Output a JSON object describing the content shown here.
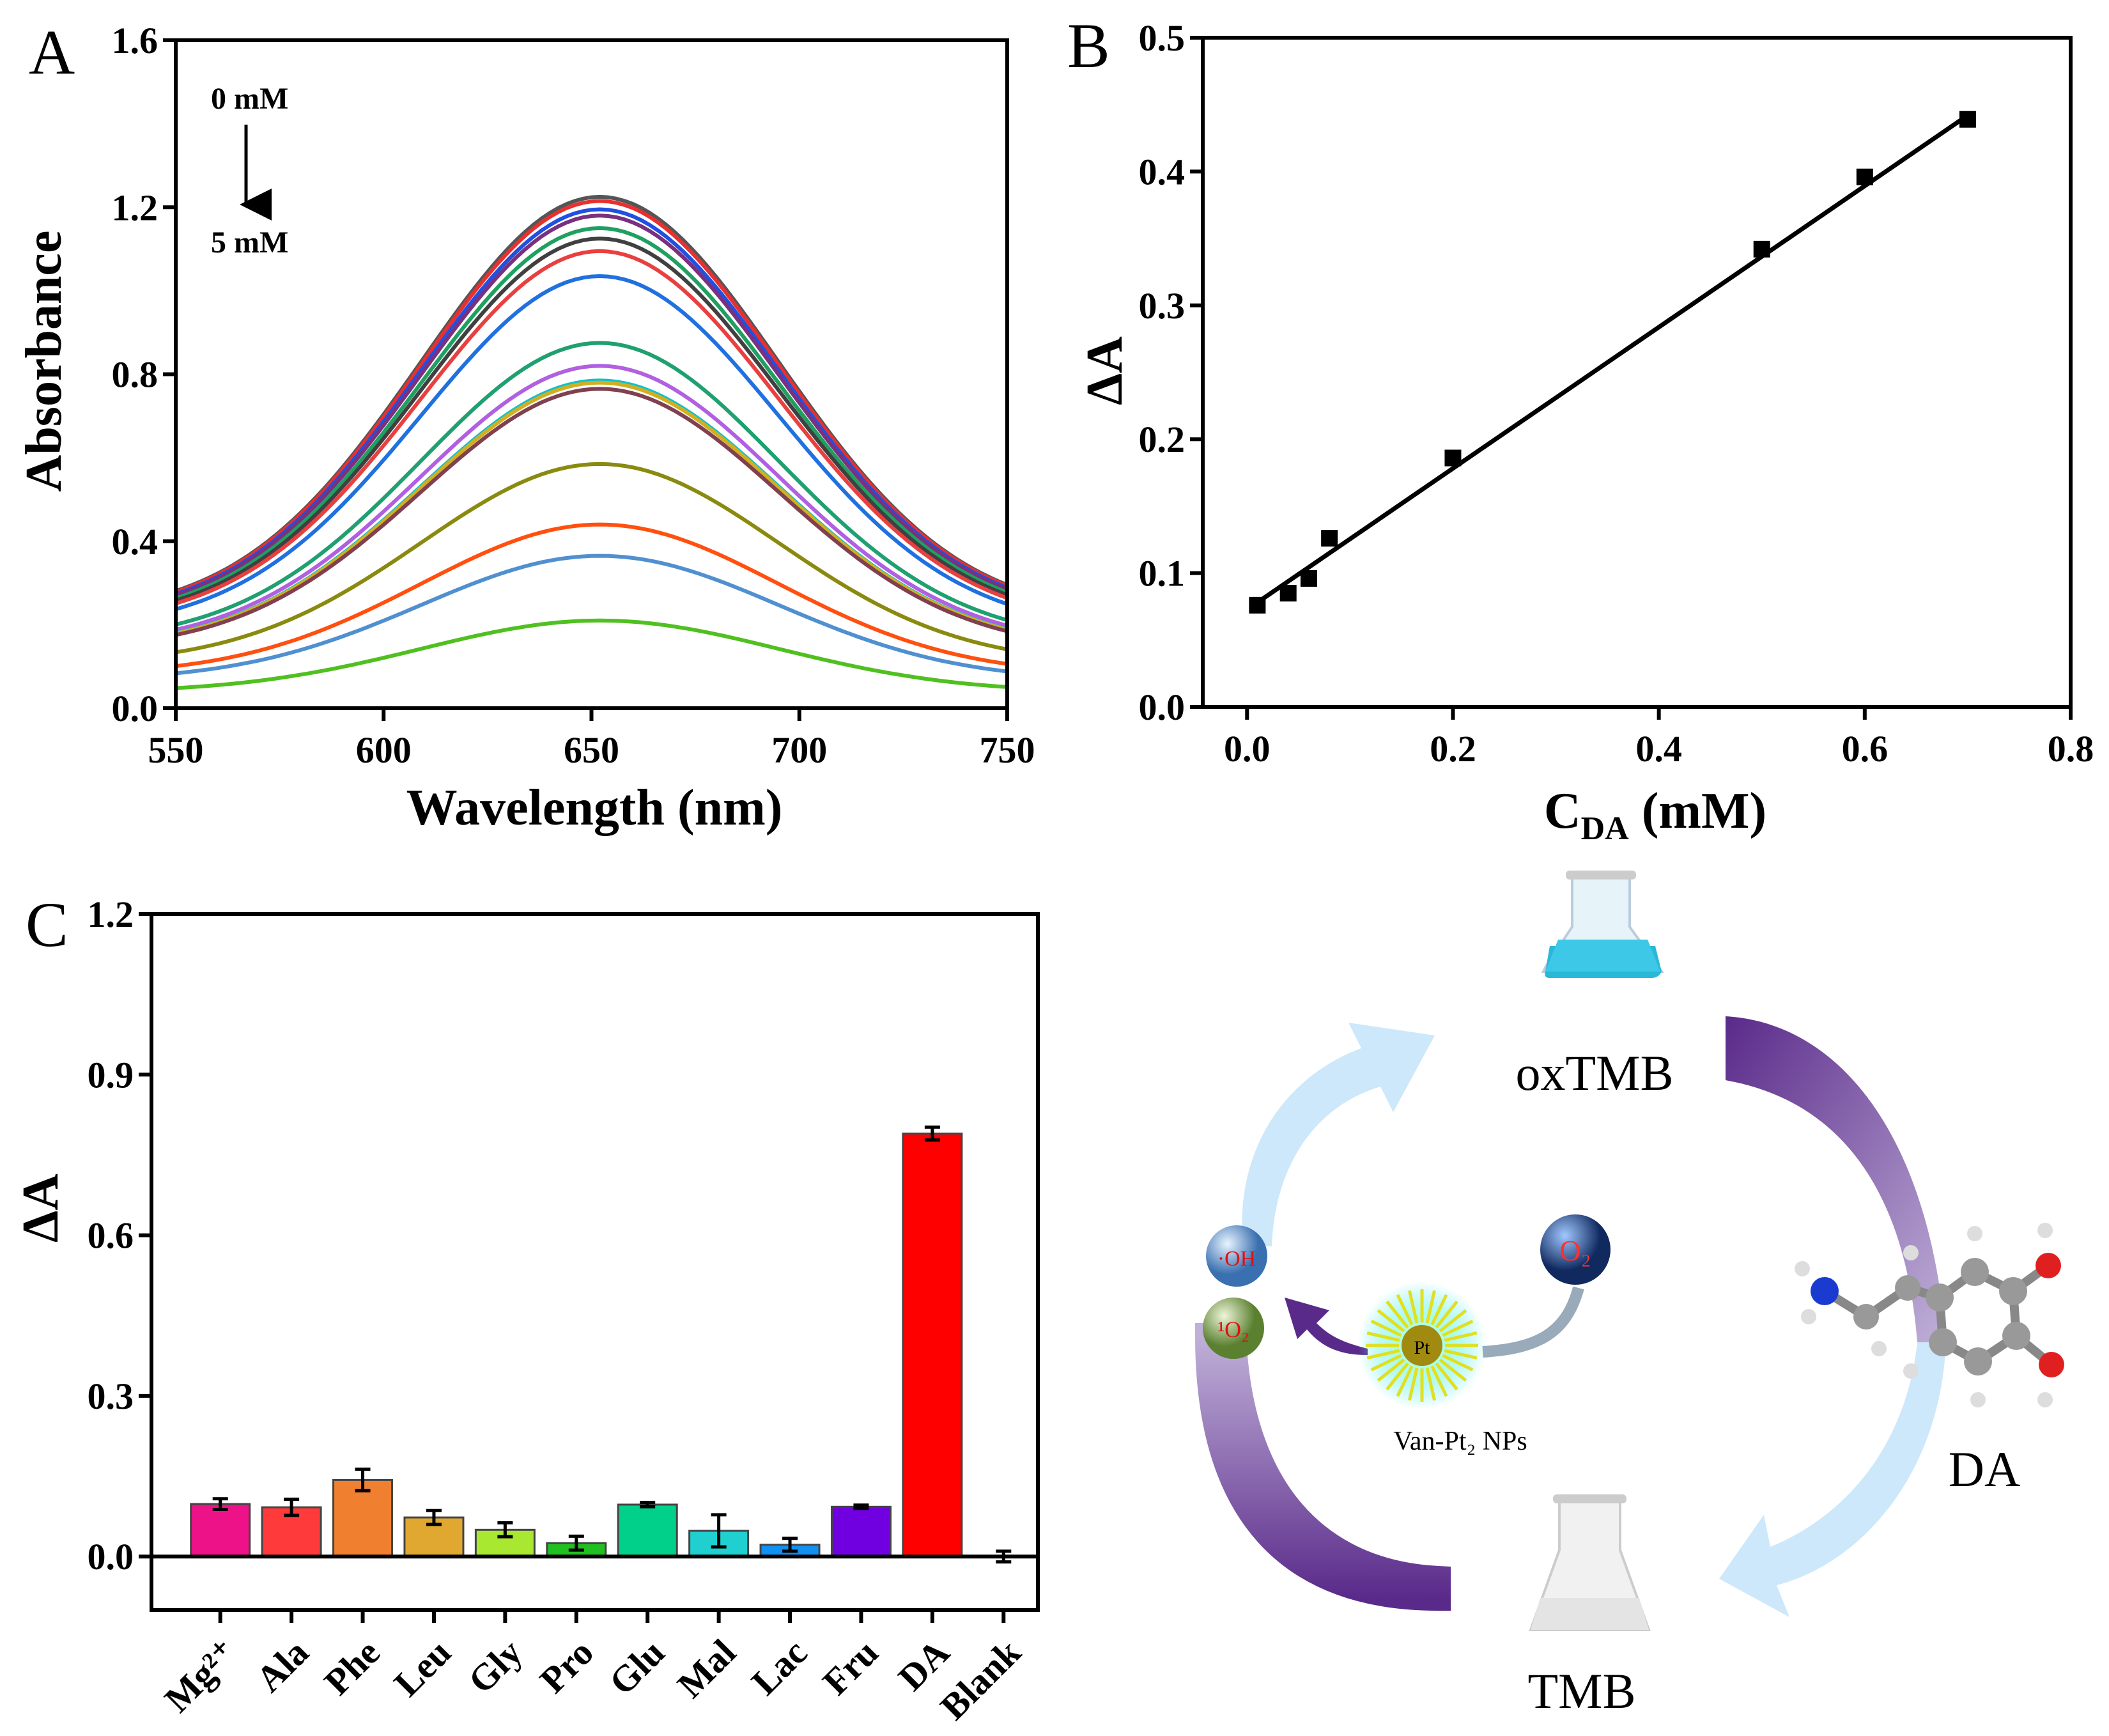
{
  "panel_labels": {
    "a": "A",
    "b": "B",
    "c": "C"
  },
  "chart_data": [
    {
      "type": "line",
      "panel": "A",
      "xlabel": "Wavelength (nm)",
      "ylabel": "Absorbance",
      "xlim": [
        550,
        750
      ],
      "ylim": [
        0,
        1.6
      ],
      "xticks": [
        "550",
        "600",
        "650",
        "700",
        "750"
      ],
      "yticks": [
        "0.0",
        "0.4",
        "0.8",
        "1.2",
        "1.6"
      ],
      "annotation_top": "0 mM",
      "annotation_bottom": "5 mM",
      "peak_wavelength": 652,
      "series": [
        {
          "name": "s1",
          "peak": 1.225,
          "color": "#555555"
        },
        {
          "name": "s2",
          "peak": 1.215,
          "color": "#e83030"
        },
        {
          "name": "s3",
          "peak": 1.195,
          "color": "#2050e0"
        },
        {
          "name": "s4",
          "peak": 1.18,
          "color": "#7a3080"
        },
        {
          "name": "s5",
          "peak": 1.15,
          "color": "#20a060"
        },
        {
          "name": "s6",
          "peak": 1.125,
          "color": "#404040"
        },
        {
          "name": "s7",
          "peak": 1.095,
          "color": "#e84040"
        },
        {
          "name": "s8",
          "peak": 1.035,
          "color": "#2070e0"
        },
        {
          "name": "s9",
          "peak": 0.875,
          "color": "#20a070"
        },
        {
          "name": "s10",
          "peak": 0.82,
          "color": "#b060e0"
        },
        {
          "name": "s11",
          "peak": 0.785,
          "color": "#10c0d0"
        },
        {
          "name": "s12",
          "peak": 0.78,
          "color": "#d0b020"
        },
        {
          "name": "s13",
          "peak": 0.765,
          "color": "#804050"
        },
        {
          "name": "s14",
          "peak": 0.585,
          "color": "#8a8a10"
        },
        {
          "name": "s15",
          "peak": 0.44,
          "color": "#ff5010"
        },
        {
          "name": "s16",
          "peak": 0.365,
          "color": "#5090d0"
        },
        {
          "name": "s17",
          "peak": 0.21,
          "color": "#50c020"
        }
      ]
    },
    {
      "type": "scatter",
      "panel": "B",
      "xlabel": "C",
      "xlabel_sub": "DA",
      "xlabel_unit": " (mM)",
      "ylabel": "ΔA",
      "xlim": [
        -0.043,
        0.8
      ],
      "ylim": [
        0,
        0.5
      ],
      "xticks": [
        "0.0",
        "0.2",
        "0.4",
        "0.6",
        "0.8"
      ],
      "yticks": [
        "0.0",
        "0.1",
        "0.2",
        "0.3",
        "0.4",
        "0.5"
      ],
      "x": [
        0.01,
        0.04,
        0.06,
        0.08,
        0.2,
        0.5,
        0.6,
        0.7
      ],
      "y": [
        0.076,
        0.085,
        0.096,
        0.126,
        0.186,
        0.342,
        0.396,
        0.439
      ],
      "fit": {
        "x": [
          0.01,
          0.7
        ],
        "y": [
          0.078,
          0.442
        ]
      }
    },
    {
      "type": "bar",
      "panel": "C",
      "ylabel": "ΔA",
      "ylim": [
        -0.1,
        1.2
      ],
      "yticks": [
        "0.0",
        "0.3",
        "0.6",
        "0.9",
        "1.2"
      ],
      "categories": [
        "Mg²⁺",
        "Ala",
        "Phe",
        "Leu",
        "Gly",
        "Pro",
        "Glu",
        "Mal",
        "Lac",
        "Fru",
        "DA",
        "Blank"
      ],
      "values": [
        0.098,
        0.092,
        0.143,
        0.073,
        0.05,
        0.025,
        0.097,
        0.048,
        0.022,
        0.093,
        0.79,
        0.0
      ],
      "errors": [
        0.01,
        0.015,
        0.02,
        0.013,
        0.013,
        0.013,
        0.004,
        0.03,
        0.012,
        0.003,
        0.012,
        0.01
      ],
      "colors": [
        "#ee1289",
        "#ff3a3a",
        "#f08030",
        "#e0a830",
        "#a8e830",
        "#20c020",
        "#00d08a",
        "#20d0d0",
        "#1090f0",
        "#7000e0",
        "#ff0000",
        "#ffffff"
      ]
    }
  ],
  "scheme": {
    "oxtmb": "oxTMB",
    "tmb": "TMB",
    "da": "DA",
    "np_label": "Van-Pt₂ NPs",
    "oh": "·OH",
    "singlet_o2": "¹O₂",
    "o2": "O₂",
    "pt": "Pt"
  }
}
